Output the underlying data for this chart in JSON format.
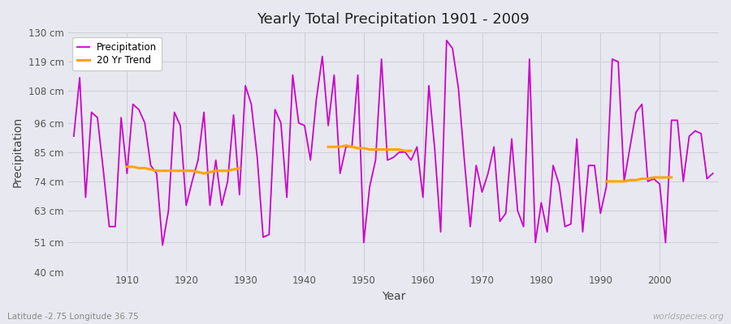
{
  "title": "Yearly Total Precipitation 1901 - 2009",
  "xlabel": "Year",
  "ylabel": "Precipitation",
  "bg_color": "#e8e8f0",
  "plot_bg_color": "#e8e8f0",
  "grid_color": "#d0d0d8",
  "precip_color": "#cc00cc",
  "trend_color": "#ffa500",
  "precip_linewidth": 1.3,
  "trend_linewidth": 2.2,
  "lat_lon_label": "Latitude -2.75 Longitude 36.75",
  "watermark": "worldspecies.org",
  "ylim": [
    40,
    130
  ],
  "yticks": [
    40,
    51,
    63,
    74,
    85,
    96,
    108,
    119,
    130
  ],
  "ytick_labels": [
    "40 cm",
    "51 cm",
    "63 cm",
    "74 cm",
    "85 cm",
    "96 cm",
    "108 cm",
    "119 cm",
    "130 cm"
  ],
  "years": [
    1901,
    1902,
    1903,
    1904,
    1905,
    1906,
    1907,
    1908,
    1909,
    1910,
    1911,
    1912,
    1913,
    1914,
    1915,
    1916,
    1917,
    1918,
    1919,
    1920,
    1921,
    1922,
    1923,
    1924,
    1925,
    1926,
    1927,
    1928,
    1929,
    1930,
    1931,
    1932,
    1933,
    1934,
    1935,
    1936,
    1937,
    1938,
    1939,
    1940,
    1941,
    1942,
    1943,
    1944,
    1945,
    1946,
    1947,
    1948,
    1949,
    1950,
    1951,
    1952,
    1953,
    1954,
    1955,
    1956,
    1957,
    1958,
    1959,
    1960,
    1961,
    1962,
    1963,
    1964,
    1965,
    1966,
    1967,
    1968,
    1969,
    1970,
    1971,
    1972,
    1973,
    1974,
    1975,
    1976,
    1977,
    1978,
    1979,
    1980,
    1981,
    1982,
    1983,
    1984,
    1985,
    1986,
    1987,
    1988,
    1989,
    1990,
    1991,
    1992,
    1993,
    1994,
    1995,
    1996,
    1997,
    1998,
    1999,
    2000,
    2001,
    2002,
    2003,
    2004,
    2005,
    2006,
    2007,
    2008,
    2009
  ],
  "precip": [
    91,
    113,
    68,
    100,
    98,
    78,
    57,
    57,
    98,
    77,
    103,
    101,
    96,
    80,
    77,
    50,
    63,
    100,
    95,
    65,
    74,
    82,
    100,
    65,
    82,
    65,
    74,
    99,
    69,
    110,
    103,
    83,
    53,
    54,
    101,
    96,
    68,
    114,
    96,
    95,
    82,
    105,
    121,
    95,
    114,
    77,
    87,
    87,
    114,
    51,
    72,
    82,
    120,
    82,
    83,
    85,
    85,
    82,
    87,
    68,
    110,
    86,
    55,
    127,
    124,
    109,
    82,
    57,
    80,
    70,
    77,
    87,
    59,
    62,
    90,
    63,
    57,
    120,
    51,
    66,
    55,
    80,
    73,
    57,
    58,
    90,
    55,
    80,
    80,
    62,
    72,
    120,
    119,
    74,
    87,
    100,
    103,
    74,
    75,
    73,
    51,
    97,
    97,
    74,
    91,
    93,
    92,
    75,
    77
  ],
  "trend_segments": [
    {
      "years": [
        1910,
        1911,
        1912,
        1913,
        1914,
        1915,
        1916,
        1917,
        1918,
        1919,
        1920,
        1921,
        1922,
        1923,
        1924,
        1925,
        1926,
        1927,
        1928,
        1929
      ],
      "vals": [
        79.5,
        79.5,
        79.0,
        79.0,
        78.5,
        78.0,
        78.0,
        78.0,
        78.0,
        78.0,
        78.0,
        78.0,
        77.5,
        77.0,
        77.5,
        78.0,
        78.0,
        78.0,
        78.5,
        79.0
      ]
    },
    {
      "years": [
        1944,
        1945,
        1946,
        1947,
        1948,
        1949,
        1950,
        1951,
        1952,
        1953,
        1954,
        1955,
        1956,
        1957,
        1958
      ],
      "vals": [
        87.0,
        87.0,
        87.0,
        87.5,
        87.0,
        86.5,
        86.5,
        86.0,
        86.0,
        86.0,
        86.0,
        86.0,
        86.0,
        85.5,
        85.5
      ]
    },
    {
      "years": [
        1991,
        1992,
        1993,
        1994,
        1995,
        1996,
        1997,
        1998,
        1999,
        2000,
        2001,
        2002
      ],
      "vals": [
        74.0,
        74.0,
        74.0,
        74.0,
        74.5,
        74.5,
        75.0,
        75.0,
        75.5,
        75.5,
        75.5,
        75.5
      ]
    }
  ]
}
